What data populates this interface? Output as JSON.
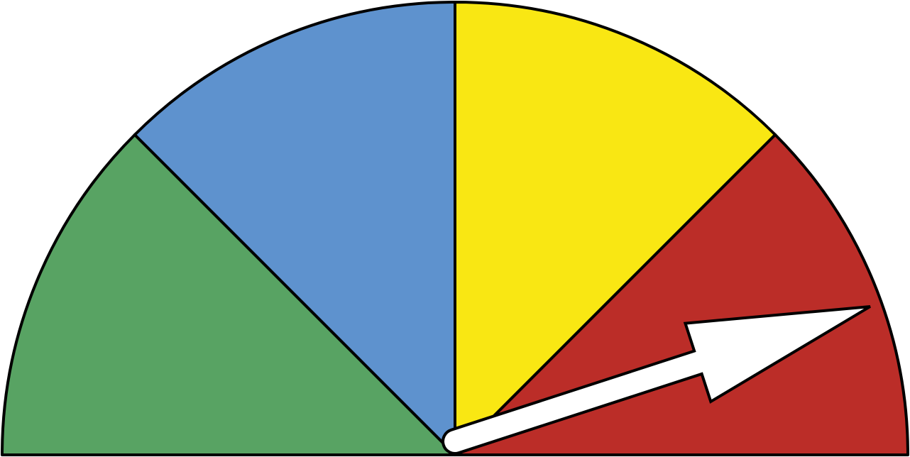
{
  "gauge": {
    "segments": [
      {
        "name": "green",
        "color": "#58A363"
      },
      {
        "name": "blue",
        "color": "#5E92CE"
      },
      {
        "name": "yellow",
        "color": "#F9E713"
      },
      {
        "name": "red",
        "color": "#BB2D28"
      }
    ],
    "needle": {
      "color": "#FFFFFF",
      "outline": "#000000",
      "value_fraction": 0.9
    },
    "outline_color": "#000000"
  }
}
